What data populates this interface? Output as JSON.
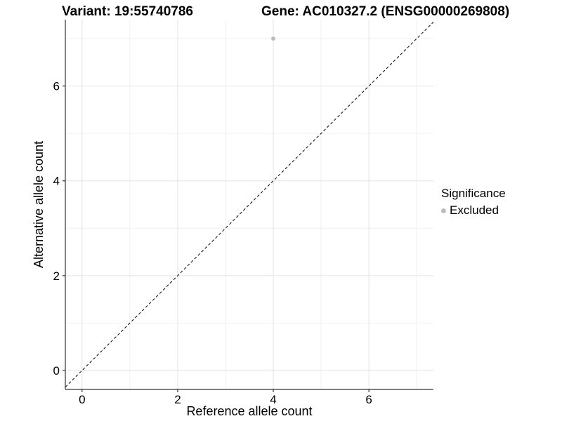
{
  "titles": {
    "variant": "Variant: 19:55740786",
    "gene": "Gene: AC010327.2 (ENSG00000269808)"
  },
  "chart_data": {
    "type": "scatter",
    "title": "",
    "xlabel": "Reference allele count",
    "ylabel": "Alternative allele count",
    "xlim": [
      -0.35,
      7.35
    ],
    "ylim": [
      -0.4,
      7.4
    ],
    "x_major_ticks": [
      0,
      2,
      4,
      6
    ],
    "y_major_ticks": [
      0,
      2,
      4,
      6
    ],
    "x_minor_ticks": [
      1,
      3,
      5,
      7
    ],
    "y_minor_ticks": [
      1,
      3,
      5,
      7
    ],
    "grid": true,
    "identity_line": {
      "slope": 1,
      "intercept": 0,
      "linetype": "dashed",
      "color": "#000000"
    },
    "series": [
      {
        "name": "Excluded",
        "color": "#bdbdbd",
        "points": [
          {
            "x": 4,
            "y": 7
          }
        ]
      }
    ],
    "legend": {
      "position": "right",
      "title": "Significance",
      "items": [
        {
          "label": "Excluded",
          "color": "#bdbdbd"
        }
      ]
    }
  },
  "colors": {
    "background": "#ffffff",
    "grid_major": "#e3e3e3",
    "grid_minor": "#f0f0f0",
    "axis_line": "#333333",
    "tick_mark": "#333333",
    "text": "#000000"
  }
}
